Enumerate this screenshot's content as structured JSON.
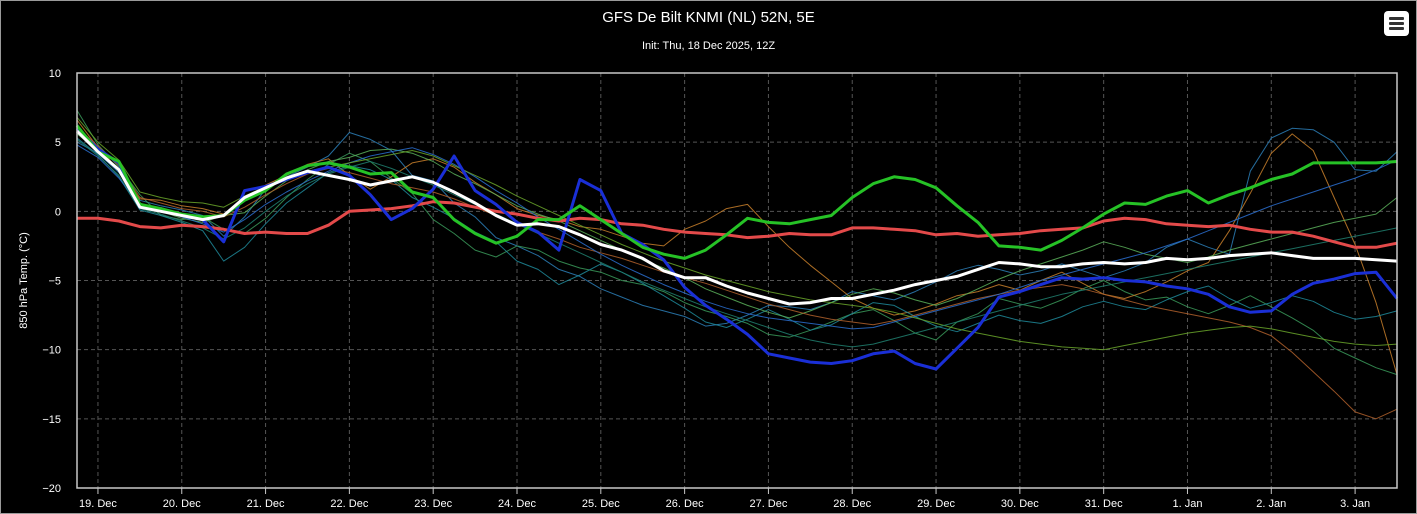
{
  "title": "GFS De Bilt KNMI (NL) 52N, 5E",
  "subtitle": "Init: Thu, 18 Dec 2025, 12Z",
  "menu_icon": "hamburger-menu-icon",
  "colors": {
    "background": "#000000",
    "grid": "#555555",
    "control": "#e34a4a",
    "main": "#26c226",
    "mean": "#ffffff",
    "member_highlight": "#1a2fd6",
    "members": [
      "#2c7fb8",
      "#3a9a5a",
      "#c87f2a",
      "#1f8a9a",
      "#5ab05a",
      "#b0602c",
      "#2a6fd0",
      "#6aa62a",
      "#208070"
    ]
  },
  "chart_data": {
    "type": "line",
    "title": "GFS De Bilt KNMI (NL) 52N, 5E",
    "subtitle": "Init: Thu, 18 Dec 2025, 12Z",
    "xlabel": "",
    "ylabel": "850 hPa Temp. (°C)",
    "ylim": [
      -20,
      10
    ],
    "yticks": [
      10,
      5,
      0,
      -5,
      -10,
      -15,
      -20
    ],
    "xlim": [
      "2025-12-18T18:00",
      "2026-01-03T12:00"
    ],
    "xticks": [
      {
        "date": "2025-12-19",
        "label": "19. Dec"
      },
      {
        "date": "2025-12-20",
        "label": "20. Dec"
      },
      {
        "date": "2025-12-21",
        "label": "21. Dec"
      },
      {
        "date": "2025-12-22",
        "label": "22. Dec"
      },
      {
        "date": "2025-12-23",
        "label": "23. Dec"
      },
      {
        "date": "2025-12-24",
        "label": "24. Dec"
      },
      {
        "date": "2025-12-25",
        "label": "25. Dec"
      },
      {
        "date": "2025-12-26",
        "label": "26. Dec"
      },
      {
        "date": "2025-12-27",
        "label": "27. Dec"
      },
      {
        "date": "2025-12-28",
        "label": "28. Dec"
      },
      {
        "date": "2025-12-29",
        "label": "29. Dec"
      },
      {
        "date": "2025-12-30",
        "label": "30. Dec"
      },
      {
        "date": "2025-12-31",
        "label": "31. Dec"
      },
      {
        "date": "2026-01-01",
        "label": "1. Jan"
      },
      {
        "date": "2026-01-02",
        "label": "2. Jan"
      },
      {
        "date": "2026-01-03",
        "label": "3. Jan"
      }
    ],
    "grid": true,
    "legend": "none",
    "x": [
      "2025-12-18T18:00",
      "2025-12-19T00:00",
      "2025-12-19T06:00",
      "2025-12-19T12:00",
      "2025-12-19T18:00",
      "2025-12-20T00:00",
      "2025-12-20T06:00",
      "2025-12-20T12:00",
      "2025-12-20T18:00",
      "2025-12-21T00:00",
      "2025-12-21T06:00",
      "2025-12-21T12:00",
      "2025-12-21T18:00",
      "2025-12-22T00:00",
      "2025-12-22T06:00",
      "2025-12-22T12:00",
      "2025-12-22T18:00",
      "2025-12-23T00:00",
      "2025-12-23T06:00",
      "2025-12-23T12:00",
      "2025-12-23T18:00",
      "2025-12-24T00:00",
      "2025-12-24T06:00",
      "2025-12-24T12:00",
      "2025-12-24T18:00",
      "2025-12-25T00:00",
      "2025-12-25T06:00",
      "2025-12-25T12:00",
      "2025-12-25T18:00",
      "2025-12-26T00:00",
      "2025-12-26T06:00",
      "2025-12-26T12:00",
      "2025-12-26T18:00",
      "2025-12-27T00:00",
      "2025-12-27T06:00",
      "2025-12-27T12:00",
      "2025-12-27T18:00",
      "2025-12-28T00:00",
      "2025-12-28T06:00",
      "2025-12-28T12:00",
      "2025-12-28T18:00",
      "2025-12-29T00:00",
      "2025-12-29T06:00",
      "2025-12-29T12:00",
      "2025-12-29T18:00",
      "2025-12-30T00:00",
      "2025-12-30T06:00",
      "2025-12-30T12:00",
      "2025-12-30T18:00",
      "2025-12-31T00:00",
      "2025-12-31T06:00",
      "2025-12-31T12:00",
      "2025-12-31T18:00",
      "2026-01-01T00:00",
      "2026-01-01T06:00",
      "2026-01-01T12:00",
      "2026-01-01T18:00",
      "2026-01-02T00:00",
      "2026-01-02T06:00",
      "2026-01-02T12:00",
      "2026-01-02T18:00",
      "2026-01-03T00:00",
      "2026-01-03T06:00",
      "2026-01-03T12:00"
    ],
    "series": [
      {
        "role": "control",
        "color": "#e34a4a",
        "width": 3,
        "values": [
          -0.5,
          -0.5,
          -0.7,
          -1.1,
          -1.2,
          -1.0,
          -1.1,
          -1.3,
          -1.6,
          -1.5,
          -1.6,
          -1.6,
          -1.0,
          0.0,
          0.1,
          0.2,
          0.4,
          0.7,
          0.6,
          0.3,
          0.0,
          -0.2,
          -0.5,
          -0.7,
          -0.5,
          -0.6,
          -0.9,
          -1.0,
          -1.3,
          -1.5,
          -1.6,
          -1.7,
          -1.9,
          -1.8,
          -1.6,
          -1.7,
          -1.7,
          -1.2,
          -1.2,
          -1.3,
          -1.4,
          -1.7,
          -1.6,
          -1.8,
          -1.7,
          -1.6,
          -1.4,
          -1.3,
          -1.2,
          -0.7,
          -0.5,
          -0.6,
          -0.9,
          -1.0,
          -1.1,
          -1.0,
          -1.3,
          -1.5,
          -1.5,
          -1.8,
          -2.2,
          -2.6,
          -2.6,
          -2.3
        ]
      },
      {
        "role": "member",
        "color": "#1a2fd6",
        "width": 3,
        "values": [
          6.0,
          4.5,
          3.5,
          0.3,
          0.2,
          -0.3,
          -0.6,
          -2.2,
          1.5,
          1.8,
          2.3,
          2.8,
          3.2,
          2.6,
          1.2,
          -0.6,
          0.2,
          1.6,
          4.0,
          1.5,
          0.5,
          -0.8,
          -1.5,
          -2.8,
          2.3,
          1.5,
          -1.6,
          -2.4,
          -3.5,
          -5.5,
          -6.8,
          -7.8,
          -8.9,
          -10.3,
          -10.6,
          -10.9,
          -11.0,
          -10.8,
          -10.3,
          -10.1,
          -11.0,
          -11.4,
          -9.9,
          -8.4,
          -6.2,
          -5.8,
          -5.3,
          -4.8,
          -4.9,
          -4.8,
          -5.0,
          -5.1,
          -5.4,
          -5.6,
          -6.0,
          -6.9,
          -7.3,
          -7.2,
          -6.0,
          -5.2,
          -4.9,
          -4.5,
          -4.4,
          -6.3
        ]
      },
      {
        "role": "main",
        "color": "#26c226",
        "width": 3,
        "values": [
          6.2,
          4.3,
          3.6,
          0.5,
          0.2,
          -0.2,
          -0.4,
          -0.3,
          0.8,
          1.5,
          2.7,
          3.3,
          3.5,
          3.2,
          2.7,
          2.8,
          1.4,
          1.0,
          -0.6,
          -1.6,
          -2.3,
          -1.8,
          -0.6,
          -0.6,
          0.4,
          -0.6,
          -1.6,
          -2.6,
          -3.1,
          -3.4,
          -2.8,
          -1.7,
          -0.5,
          -0.8,
          -0.9,
          -0.6,
          -0.3,
          1.0,
          2.0,
          2.5,
          2.3,
          1.7,
          0.4,
          -0.8,
          -2.5,
          -2.6,
          -2.8,
          -2.1,
          -1.2,
          -0.2,
          0.6,
          0.5,
          1.1,
          1.5,
          0.6,
          1.2,
          1.7,
          2.3,
          2.7,
          3.5,
          3.5,
          3.5,
          3.5,
          3.6
        ]
      },
      {
        "role": "mean",
        "color": "#ffffff",
        "width": 3,
        "values": [
          5.8,
          4.3,
          3.0,
          0.3,
          0.0,
          -0.3,
          -0.6,
          -0.3,
          1.0,
          1.7,
          2.4,
          2.9,
          2.6,
          2.3,
          1.9,
          2.2,
          2.5,
          2.1,
          1.4,
          0.6,
          -0.3,
          -1.0,
          -0.9,
          -1.1,
          -1.7,
          -2.4,
          -2.8,
          -3.4,
          -4.3,
          -4.8,
          -4.8,
          -5.4,
          -5.9,
          -6.3,
          -6.7,
          -6.6,
          -6.3,
          -6.3,
          -6.0,
          -5.7,
          -5.3,
          -5.0,
          -4.7,
          -4.2,
          -3.7,
          -3.8,
          -4.0,
          -4.0,
          -3.8,
          -3.7,
          -3.8,
          -3.7,
          -3.4,
          -3.5,
          -3.4,
          -3.2,
          -3.1,
          -3.0,
          -3.2,
          -3.4,
          -3.4,
          -3.4,
          -3.5,
          -3.6
        ]
      },
      {
        "role": "member",
        "color": "#2c7fb8",
        "width": 1,
        "values": [
          5.0,
          4.2,
          2.8,
          0.8,
          0.4,
          0.1,
          -0.3,
          -1.8,
          -0.4,
          1.6,
          2.5,
          3.2,
          4.0,
          5.7,
          5.2,
          4.4,
          2.6,
          2.2,
          0.6,
          -0.4,
          -1.9,
          -2.5,
          -3.2,
          -4.2,
          -4.7,
          -5.6,
          -6.2,
          -6.8,
          -7.2,
          -7.6,
          -8.3,
          -8.1,
          -7.5,
          -6.8,
          -6.9,
          -7.1,
          -6.6,
          -5.8,
          -6.1,
          -6.4,
          -5.8,
          -5.1,
          -4.3,
          -3.9,
          -4.2,
          -4.6,
          -4.3,
          -3.8,
          -4.3,
          -4.8,
          -4.3,
          -3.7,
          -2.6,
          -2.0,
          -2.6,
          -3.1,
          2.9,
          5.3,
          6.0,
          5.9,
          5.0,
          3.0,
          2.9,
          4.3
        ]
      },
      {
        "role": "member",
        "color": "#3a9a5a",
        "width": 1,
        "values": [
          7.3,
          4.8,
          3.2,
          1.2,
          -0.3,
          -0.6,
          -0.4,
          -1.3,
          -1.6,
          -0.5,
          1.0,
          2.3,
          3.4,
          4.2,
          3.6,
          2.4,
          1.3,
          -0.6,
          -1.6,
          -2.8,
          -3.3,
          -2.5,
          -2.8,
          -3.6,
          -4.1,
          -4.4,
          -5.0,
          -5.3,
          -5.8,
          -6.6,
          -7.2,
          -7.6,
          -8.1,
          -8.9,
          -9.1,
          -8.6,
          -8.0,
          -7.4,
          -7.1,
          -7.9,
          -8.8,
          -9.3,
          -8.0,
          -7.4,
          -6.3,
          -6.7,
          -7.0,
          -6.4,
          -5.6,
          -5.0,
          -5.8,
          -6.4,
          -6.2,
          -6.9,
          -7.4,
          -6.8,
          -6.1,
          -6.9,
          -7.7,
          -8.6,
          -9.9,
          -10.6,
          -11.3,
          -11.8
        ]
      },
      {
        "role": "member",
        "color": "#c87f2a",
        "width": 1,
        "values": [
          6.6,
          4.6,
          3.0,
          0.9,
          0.8,
          0.4,
          0.2,
          -0.2,
          0.8,
          1.9,
          2.6,
          3.4,
          3.8,
          2.6,
          1.6,
          2.5,
          3.5,
          3.8,
          3.2,
          2.1,
          1.2,
          0.2,
          -0.3,
          -0.6,
          -1.1,
          -1.3,
          -1.8,
          -2.3,
          -2.5,
          -1.3,
          -0.7,
          0.2,
          0.5,
          -1.1,
          -2.6,
          -3.9,
          -5.1,
          -6.3,
          -7.0,
          -7.5,
          -7.2,
          -6.7,
          -6.1,
          -5.8,
          -5.3,
          -5.7,
          -5.0,
          -4.4,
          -5.2,
          -6.0,
          -6.3,
          -5.8,
          -5.1,
          -4.3,
          -3.7,
          -1.4,
          1.3,
          4.2,
          5.6,
          4.4,
          1.0,
          -2.4,
          -6.6,
          -11.8
        ]
      },
      {
        "role": "member",
        "color": "#1f8a9a",
        "width": 1,
        "values": [
          5.3,
          4.1,
          2.5,
          0.1,
          -0.3,
          -0.8,
          -1.4,
          -3.6,
          -2.6,
          -0.9,
          0.6,
          1.7,
          2.8,
          3.3,
          3.0,
          2.3,
          1.0,
          0.3,
          -0.5,
          -1.5,
          -2.2,
          -3.6,
          -4.2,
          -5.3,
          -4.6,
          -3.8,
          -4.4,
          -5.2,
          -6.1,
          -7.0,
          -8.0,
          -8.4,
          -7.8,
          -7.1,
          -7.8,
          -8.6,
          -8.2,
          -7.4,
          -6.6,
          -6.8,
          -7.6,
          -8.3,
          -8.7,
          -8.1,
          -7.5,
          -7.9,
          -8.1,
          -7.6,
          -6.9,
          -6.5,
          -6.9,
          -7.1,
          -6.4,
          -5.8,
          -5.4,
          -6.3,
          -7.0,
          -6.6,
          -6.1,
          -6.5,
          -7.3,
          -7.8,
          -7.6,
          -7.2
        ]
      },
      {
        "role": "member",
        "color": "#5ab05a",
        "width": 1,
        "values": [
          5.6,
          4.4,
          2.9,
          0.6,
          0.0,
          -0.5,
          -0.8,
          -0.3,
          -0.1,
          1.1,
          2.2,
          3.0,
          3.6,
          3.9,
          4.4,
          4.5,
          4.2,
          3.6,
          2.7,
          2.0,
          1.2,
          0.4,
          -0.2,
          -0.7,
          -1.4,
          -2.1,
          -2.8,
          -3.5,
          -4.1,
          -4.8,
          -5.6,
          -6.2,
          -6.8,
          -7.3,
          -7.7,
          -7.2,
          -6.6,
          -6.0,
          -5.6,
          -5.9,
          -6.4,
          -6.8,
          -6.3,
          -5.6,
          -4.9,
          -4.3,
          -3.8,
          -3.3,
          -2.8,
          -2.2,
          -2.6,
          -3.1,
          -3.4,
          -3.7,
          -3.3,
          -2.8,
          -2.4,
          -2.0,
          -1.6,
          -1.2,
          -0.8,
          -0.5,
          -0.2,
          1.0
        ]
      },
      {
        "role": "member",
        "color": "#b0602c",
        "width": 1,
        "values": [
          6.1,
          4.7,
          3.3,
          1.0,
          0.6,
          0.2,
          0.0,
          -0.4,
          0.3,
          1.2,
          2.0,
          2.7,
          3.1,
          2.8,
          2.4,
          2.0,
          1.7,
          1.4,
          0.9,
          0.3,
          -0.3,
          -0.9,
          -1.5,
          -2.0,
          -2.6,
          -3.0,
          -3.4,
          -3.9,
          -4.4,
          -4.8,
          -5.2,
          -5.7,
          -6.2,
          -6.7,
          -7.1,
          -7.5,
          -7.8,
          -8.0,
          -8.2,
          -7.9,
          -7.5,
          -7.1,
          -6.7,
          -6.3,
          -6.0,
          -5.7,
          -5.5,
          -5.3,
          -5.6,
          -6.0,
          -6.4,
          -6.8,
          -7.1,
          -7.4,
          -7.7,
          -8.0,
          -8.4,
          -9.0,
          -10.2,
          -11.6,
          -13.0,
          -14.5,
          -15.0,
          -14.3
        ]
      },
      {
        "role": "member",
        "color": "#2a6fd0",
        "width": 1,
        "values": [
          4.8,
          3.9,
          2.4,
          0.4,
          0.1,
          -0.4,
          -0.9,
          -1.5,
          -0.6,
          0.5,
          1.4,
          2.2,
          2.9,
          3.5,
          4.0,
          4.3,
          4.6,
          4.1,
          3.4,
          2.5,
          1.5,
          0.6,
          -0.4,
          -1.3,
          -2.2,
          -3.1,
          -3.9,
          -4.6,
          -5.3,
          -5.9,
          -6.5,
          -7.0,
          -7.4,
          -7.7,
          -7.9,
          -8.1,
          -8.3,
          -8.5,
          -8.4,
          -8.0,
          -7.6,
          -7.2,
          -6.8,
          -6.4,
          -6.0,
          -5.5,
          -5.0,
          -4.6,
          -4.2,
          -3.8,
          -3.4,
          -3.0,
          -2.5,
          -2.0,
          -1.4,
          -0.8,
          -0.2,
          0.4,
          0.9,
          1.4,
          1.9,
          2.4,
          3.0,
          3.7
        ]
      },
      {
        "role": "member",
        "color": "#6aa62a",
        "width": 1,
        "values": [
          6.8,
          5.0,
          3.7,
          1.4,
          1.0,
          0.7,
          0.6,
          0.3,
          1.1,
          1.8,
          2.4,
          2.9,
          3.2,
          3.5,
          3.8,
          4.1,
          4.4,
          4.0,
          3.3,
          2.6,
          1.9,
          1.1,
          0.4,
          -0.3,
          -1.0,
          -1.7,
          -2.4,
          -3.0,
          -3.6,
          -4.1,
          -4.6,
          -5.0,
          -5.4,
          -5.8,
          -6.1,
          -6.4,
          -6.6,
          -6.8,
          -7.0,
          -7.3,
          -7.7,
          -8.1,
          -8.5,
          -8.8,
          -9.1,
          -9.4,
          -9.6,
          -9.8,
          -9.9,
          -10.0,
          -9.7,
          -9.4,
          -9.1,
          -8.8,
          -8.6,
          -8.4,
          -8.3,
          -8.5,
          -8.8,
          -9.1,
          -9.4,
          -9.6,
          -9.7,
          -9.6
        ]
      },
      {
        "role": "member",
        "color": "#208070",
        "width": 1,
        "values": [
          5.2,
          4.0,
          2.6,
          0.2,
          -0.2,
          -0.7,
          -1.2,
          -2.0,
          -1.2,
          0.0,
          1.1,
          2.0,
          2.7,
          3.2,
          3.6,
          3.1,
          2.5,
          1.9,
          1.2,
          0.5,
          -0.2,
          -0.9,
          -1.6,
          -2.3,
          -3.0,
          -3.7,
          -4.4,
          -5.1,
          -5.7,
          -6.3,
          -6.9,
          -7.4,
          -7.9,
          -8.4,
          -8.9,
          -9.3,
          -9.6,
          -9.8,
          -9.6,
          -9.2,
          -8.8,
          -8.4,
          -8.0,
          -7.6,
          -7.2,
          -6.8,
          -6.4,
          -6.0,
          -5.7,
          -5.4,
          -5.1,
          -4.8,
          -4.5,
          -4.2,
          -3.9,
          -3.6,
          -3.3,
          -3.0,
          -2.7,
          -2.4,
          -2.1,
          -1.8,
          -1.5,
          -1.2
        ]
      }
    ]
  }
}
